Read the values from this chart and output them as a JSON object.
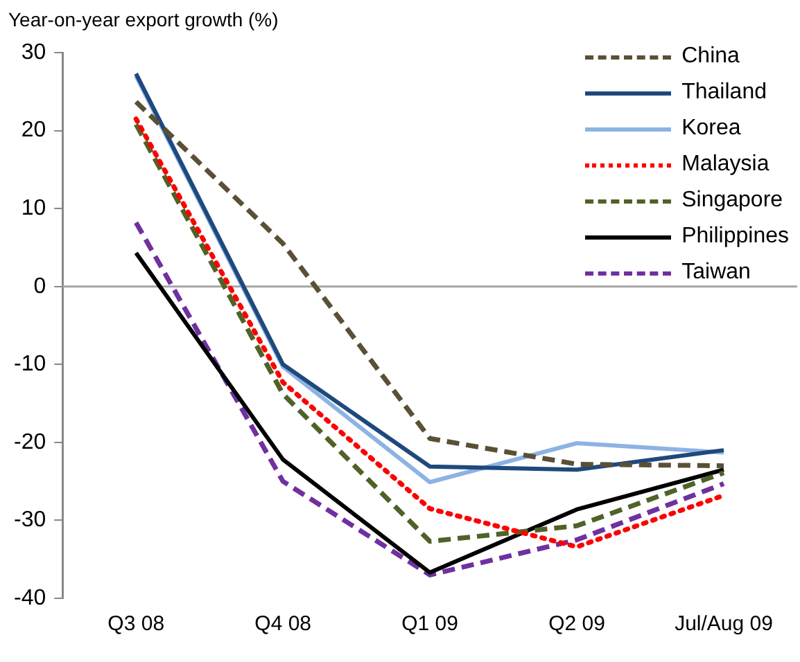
{
  "chart_data": {
    "type": "line",
    "ylabel": "Year-on-year export growth (%)",
    "categories": [
      "Q3 08",
      "Q4 08",
      "Q1 09",
      "Q2 09",
      "Jul/Aug 09"
    ],
    "ylim": [
      -40,
      30
    ],
    "yticks": [
      -40,
      -30,
      -20,
      -10,
      0,
      10,
      20,
      30
    ],
    "grid": false,
    "legend": "top right",
    "marker": "none",
    "ref_lines": [
      {
        "axis": "y",
        "value": 0,
        "color": "#a6a6a6"
      }
    ],
    "series": [
      {
        "name": "China",
        "color": "#5a5035",
        "line_style": "dashed",
        "values": [
          23.7,
          5.5,
          -19.5,
          -22.8,
          -23
        ]
      },
      {
        "name": "Thailand",
        "color": "#1f497d",
        "line_style": "solid",
        "values": [
          27.3,
          -10,
          -23.1,
          -23.5,
          -21
        ]
      },
      {
        "name": "Korea",
        "color": "#8db3e2",
        "line_style": "solid",
        "values": [
          27,
          -10.3,
          -25.1,
          -20.1,
          -21.3
        ]
      },
      {
        "name": "Malaysia",
        "color": "#ff0000",
        "line_style": "dotted",
        "values": [
          21.5,
          -12.3,
          -28.5,
          -33.4,
          -26.8
        ]
      },
      {
        "name": "Singapore",
        "color": "#4f6228",
        "line_style": "dashed",
        "values": [
          20.8,
          -13.8,
          -32.7,
          -30.7,
          -23.9
        ]
      },
      {
        "name": "Philippines",
        "color": "#000000",
        "line_style": "solid",
        "values": [
          4.3,
          -22.2,
          -36.7,
          -28.6,
          -23.5
        ]
      },
      {
        "name": "Taiwan",
        "color": "#7030a0",
        "line_style": "dashed",
        "values": [
          8.2,
          -25,
          -37,
          -32.5,
          -25.3
        ]
      }
    ]
  }
}
